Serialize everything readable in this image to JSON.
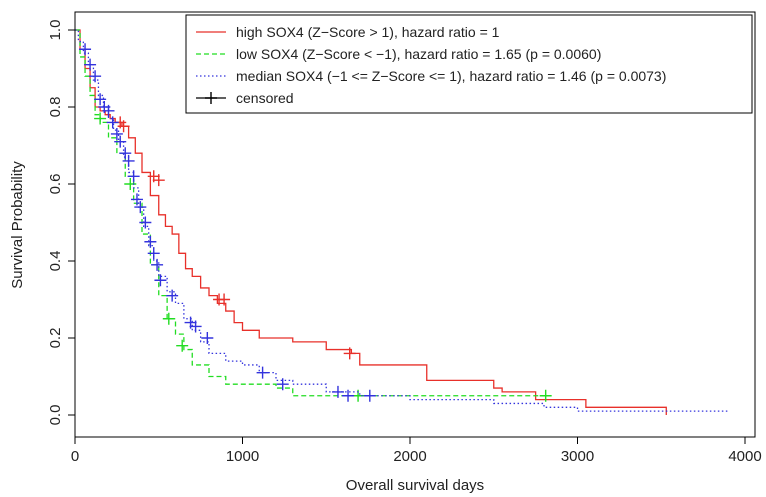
{
  "chart_data": {
    "type": "line",
    "title": "",
    "xlabel": "Overall survival days",
    "ylabel": "Survival Probability",
    "xlim": [
      0,
      4000
    ],
    "ylim": [
      0,
      1.0
    ],
    "x_ticks": [
      "0",
      "1000",
      "2000",
      "3000",
      "4000"
    ],
    "y_ticks": [
      "0.0",
      "0.2",
      "0.4",
      "0.6",
      "0.8",
      "1.0"
    ],
    "grid": false,
    "legend_position": "top-right",
    "legend": [
      {
        "label": "high SOX4 (Z−Score > 1), hazard ratio = 1",
        "color": "#e8302a",
        "style": "solid"
      },
      {
        "label": "low SOX4 (Z−Score < −1), hazard ratio = 1.65 (p = 0.0060)",
        "color": "#22dd22",
        "style": "dashed"
      },
      {
        "label": "median SOX4 (−1 <= Z−Score <= 1), hazard ratio = 1.46 (p = 0.0073)",
        "color": "#3333dd",
        "style": "dotted"
      },
      {
        "label": "censored",
        "color": "#000000",
        "style": "cross"
      }
    ],
    "series": [
      {
        "name": "high SOX4 (Z−Score > 1), hazard ratio = 1",
        "color": "#e8302a",
        "style": "solid",
        "x": [
          0,
          30,
          60,
          90,
          120,
          150,
          180,
          210,
          240,
          280,
          320,
          360,
          400,
          450,
          500,
          540,
          580,
          620,
          660,
          700,
          750,
          800,
          850,
          900,
          950,
          1000,
          1100,
          1300,
          1500,
          1650,
          1700,
          2100,
          2500,
          2550,
          2750,
          3050,
          3530
        ],
        "y": [
          1.0,
          0.95,
          0.9,
          0.85,
          0.8,
          0.79,
          0.78,
          0.77,
          0.76,
          0.75,
          0.72,
          0.68,
          0.63,
          0.57,
          0.52,
          0.49,
          0.47,
          0.42,
          0.38,
          0.36,
          0.33,
          0.31,
          0.29,
          0.27,
          0.24,
          0.22,
          0.2,
          0.19,
          0.17,
          0.16,
          0.13,
          0.09,
          0.07,
          0.06,
          0.04,
          0.02,
          0.0
        ],
        "censored": [
          [
            270,
            0.76
          ],
          [
            290,
            0.75
          ],
          [
            470,
            0.62
          ],
          [
            500,
            0.61
          ],
          [
            860,
            0.3
          ],
          [
            890,
            0.3
          ],
          [
            1640,
            0.16
          ]
        ]
      },
      {
        "name": "low SOX4 (Z−Score < −1), hazard ratio = 1.65 (p = 0.0060)",
        "color": "#22dd22",
        "style": "dashed",
        "x": [
          0,
          30,
          60,
          90,
          120,
          150,
          200,
          250,
          300,
          350,
          400,
          450,
          500,
          550,
          600,
          650,
          700,
          800,
          900,
          1000,
          1100,
          1200,
          1300,
          1700,
          2700,
          2820
        ],
        "y": [
          1.0,
          0.93,
          0.88,
          0.83,
          0.78,
          0.76,
          0.72,
          0.68,
          0.62,
          0.55,
          0.47,
          0.39,
          0.31,
          0.25,
          0.21,
          0.17,
          0.13,
          0.1,
          0.08,
          0.08,
          0.08,
          0.07,
          0.05,
          0.05,
          0.05,
          0.05
        ],
        "censored": [
          [
            150,
            0.77
          ],
          [
            330,
            0.6
          ],
          [
            560,
            0.25
          ],
          [
            640,
            0.18
          ],
          [
            1690,
            0.05
          ],
          [
            2810,
            0.05
          ]
        ]
      },
      {
        "name": "median SOX4 (−1 <= Z−Score <= 1), hazard ratio = 1.46 (p = 0.0073)",
        "color": "#3333dd",
        "style": "dotted",
        "x": [
          0,
          20,
          50,
          80,
          110,
          140,
          170,
          200,
          230,
          260,
          290,
          320,
          350,
          380,
          410,
          440,
          470,
          500,
          550,
          600,
          650,
          700,
          750,
          800,
          900,
          1000,
          1100,
          1200,
          1300,
          1500,
          1700,
          1800,
          2000,
          2500,
          2800,
          3000,
          3200,
          3500,
          3900
        ],
        "y": [
          1.0,
          0.97,
          0.94,
          0.91,
          0.87,
          0.83,
          0.8,
          0.77,
          0.74,
          0.71,
          0.67,
          0.63,
          0.59,
          0.54,
          0.49,
          0.44,
          0.4,
          0.36,
          0.32,
          0.29,
          0.25,
          0.22,
          0.19,
          0.16,
          0.14,
          0.13,
          0.11,
          0.09,
          0.08,
          0.06,
          0.05,
          0.05,
          0.04,
          0.03,
          0.02,
          0.01,
          0.01,
          0.01,
          0.01
        ],
        "censored": [
          [
            60,
            0.95
          ],
          [
            90,
            0.91
          ],
          [
            120,
            0.88
          ],
          [
            150,
            0.82
          ],
          [
            175,
            0.8
          ],
          [
            200,
            0.79
          ],
          [
            225,
            0.76
          ],
          [
            250,
            0.73
          ],
          [
            270,
            0.71
          ],
          [
            300,
            0.68
          ],
          [
            320,
            0.66
          ],
          [
            350,
            0.62
          ],
          [
            370,
            0.56
          ],
          [
            390,
            0.54
          ],
          [
            420,
            0.5
          ],
          [
            450,
            0.45
          ],
          [
            470,
            0.42
          ],
          [
            490,
            0.39
          ],
          [
            510,
            0.35
          ],
          [
            580,
            0.31
          ],
          [
            690,
            0.24
          ],
          [
            720,
            0.23
          ],
          [
            790,
            0.2
          ],
          [
            1120,
            0.11
          ],
          [
            1240,
            0.08
          ],
          [
            1570,
            0.06
          ],
          [
            1630,
            0.05
          ],
          [
            1760,
            0.05
          ]
        ]
      }
    ]
  }
}
